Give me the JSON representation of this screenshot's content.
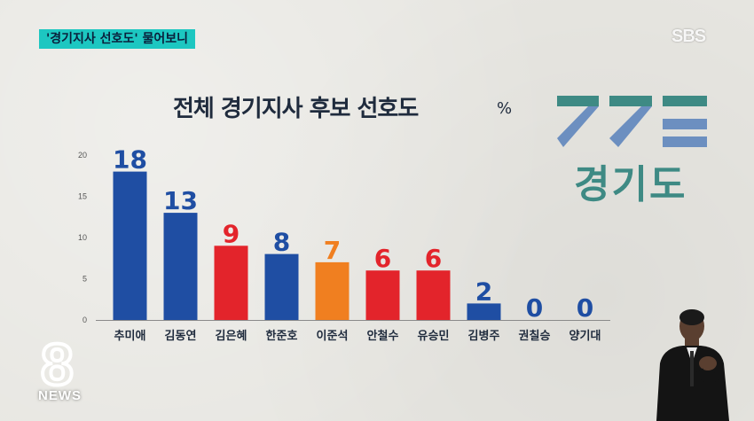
{
  "caption": "'경기지사 선호도' 물어보니",
  "broadcaster": "SBS",
  "news_logo": {
    "number": "8",
    "label": "NEWS"
  },
  "region_logo": {
    "text": "경기도",
    "mark_color": "#3e8a84",
    "accent_color": "#6c8fc0"
  },
  "colors": {
    "blue": "#1f4ea3",
    "red": "#e3242b",
    "orange": "#f07f20",
    "caption_bg": "#1dc7c1",
    "background": "#e7e6e1"
  },
  "chart_data": {
    "type": "bar",
    "title": "전체 경기지사 후보 선호도",
    "unit": "%",
    "categories": [
      "추미애",
      "김동연",
      "김은혜",
      "한준호",
      "이준석",
      "안철수",
      "유승민",
      "김병주",
      "권칠승",
      "양기대"
    ],
    "values": [
      18,
      13,
      9,
      8,
      7,
      6,
      6,
      2,
      0,
      0
    ],
    "bar_colors": [
      "#1f4ea3",
      "#1f4ea3",
      "#e3242b",
      "#1f4ea3",
      "#f07f20",
      "#e3242b",
      "#e3242b",
      "#1f4ea3",
      "#1f4ea3",
      "#1f4ea3"
    ],
    "label_colors": [
      "#1f4ea3",
      "#1f4ea3",
      "#e3242b",
      "#1f4ea3",
      "#f07f20",
      "#e3242b",
      "#e3242b",
      "#1f4ea3",
      "#1f4ea3",
      "#1f4ea3"
    ],
    "yticks": [
      0,
      5,
      10,
      15,
      20
    ],
    "ylim": [
      0,
      20
    ],
    "grid": false,
    "legend": "none"
  }
}
